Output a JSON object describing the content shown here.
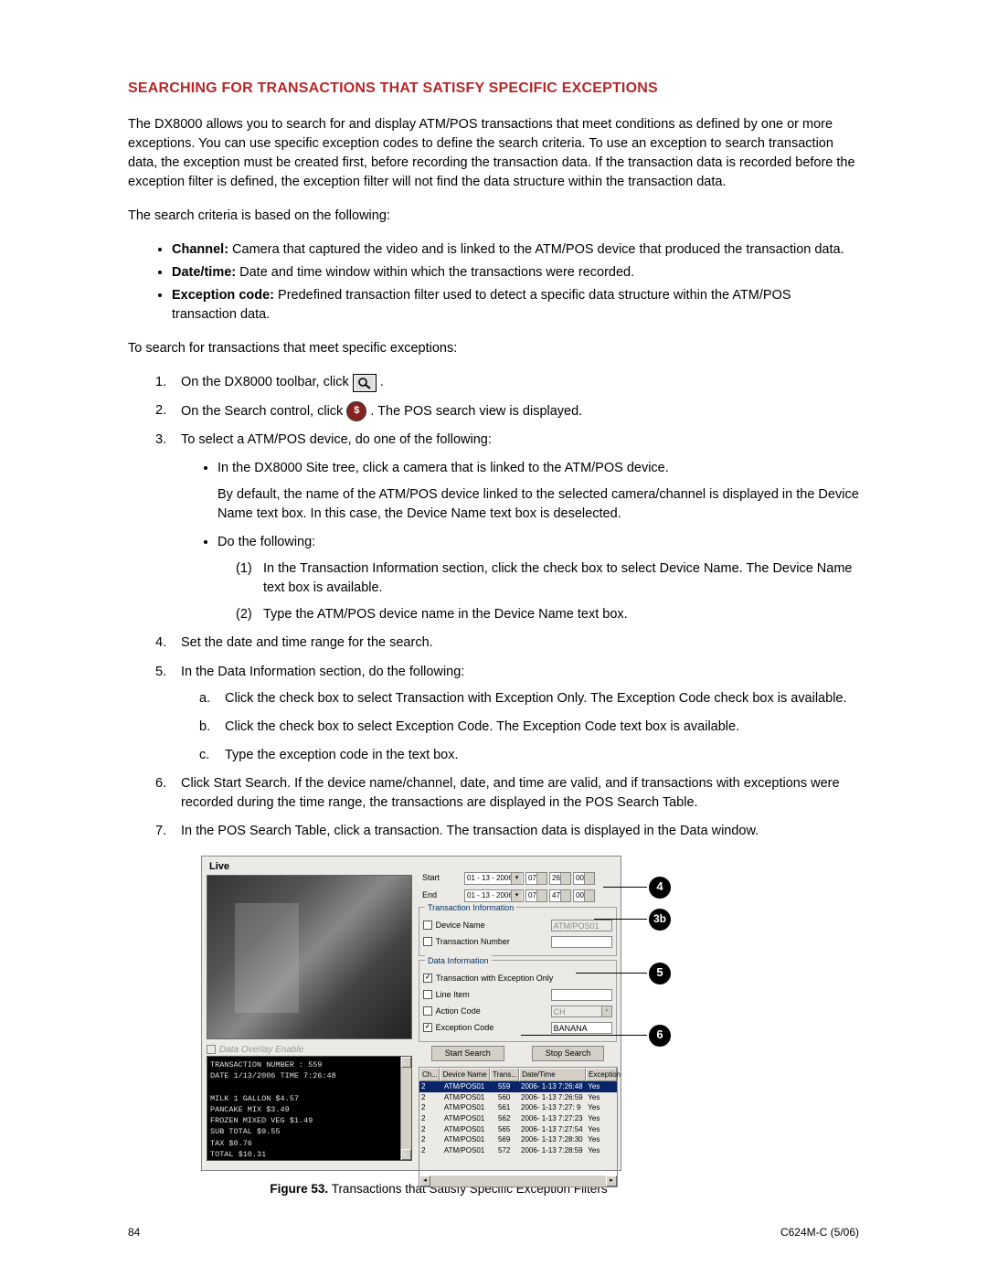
{
  "title": "SEARCHING FOR TRANSACTIONS THAT SATISFY SPECIFIC EXCEPTIONS",
  "intro": "The DX8000 allows you to search for and display ATM/POS transactions that meet conditions as defined by one or more exceptions. You can use specific exception codes to define the search criteria. To use an exception to search transaction data, the exception must be created first, before recording the transaction data. If the transaction data is recorded before the exception filter is defined, the exception filter will not find the data structure within the transaction data.",
  "criteria_intro": "The search criteria is based on the following:",
  "criteria": [
    {
      "b": "Channel:",
      "t": " Camera that captured the video and is linked to the ATM/POS device that produced the transaction data."
    },
    {
      "b": "Date/time:",
      "t": " Date and time window within which the transactions were recorded."
    },
    {
      "b": "Exception code:",
      "t": " Predefined transaction filter used to detect a specific data structure within the ATM/POS transaction data."
    }
  ],
  "steps_intro": "To search for transactions that meet specific exceptions:",
  "step1_a": "On the DX8000 toolbar, click ",
  "step1_b": " .",
  "step2_a": "On the Search control, click ",
  "step2_b": " . The POS search view is displayed.",
  "step3": "To select a ATM/POS device, do one of the following:",
  "step3_b1": "In the DX8000 Site tree, click a camera that is linked to the ATM/POS device.",
  "step3_b1_p": "By default, the name of the ATM/POS device linked to the selected camera/channel is displayed in the Device Name text box. In this case, the Device Name text box is deselected.",
  "step3_b2": "Do the following:",
  "step3_b2_1": "In the Transaction Information section, click the check box to select Device Name. The Device Name text box is available.",
  "step3_b2_2": "Type the ATM/POS device name in the Device Name text box.",
  "step4": "Set the date and time range for the search.",
  "step5": "In the Data Information section, do the following:",
  "step5_a": "Click the check box to select Transaction with Exception Only. The Exception Code check box is available.",
  "step5_b": "Click the check box to select Exception Code. The Exception Code text box is available.",
  "step5_c": "Type the exception code in the text box.",
  "step6": "Click Start Search. If the device name/channel, date, and time are valid, and if transactions with exceptions were recorded during the time range, the transactions are displayed in the POS Search Table.",
  "step7": "In the POS Search Table, click a transaction. The transaction data is displayed in the Data window.",
  "fig": {
    "live": "Live",
    "overlay": "Data Overlay Enable",
    "receipt": [
      "TRANSACTION NUMBER : 559",
      "DATE 1/13/2006   TIME 7:26:48",
      "",
      "MILK 1 GALLON        $4.57",
      "PANCAKE MIX          $3.49",
      "FROZEN MIXED VEG     $1.49",
      "SUB TOTAL            $9.55",
      "TAX                  $0.76",
      "TOTAL               $10.31"
    ],
    "start": "Start",
    "end": "End",
    "date": "01 - 13 - 2006",
    "h1": "07",
    "m1": "26",
    "s1": "00",
    "h2": "07",
    "m2": "47",
    "s2": "00",
    "ti": "Transaction Information",
    "di": "Data Information",
    "devname": "Device Name",
    "devval": "ATM/POS01",
    "transno": "Transaction Number",
    "texonly": "Transaction with Exception Only",
    "lineitem": "Line Item",
    "actioncode": "Action Code",
    "actionval": "CH",
    "excode": "Exception Code",
    "exval": "BANANA",
    "startbtn": "Start Search",
    "stopbtn": "Stop Search",
    "cols": [
      "Ch...",
      "Device Name",
      "Trans...",
      "Date/Time",
      "Exception"
    ],
    "rows": [
      [
        "2",
        "ATM/POS01",
        "559",
        "2006- 1-13  7:26:48",
        "Yes"
      ],
      [
        "2",
        "ATM/POS01",
        "560",
        "2006- 1-13  7:26:59",
        "Yes"
      ],
      [
        "2",
        "ATM/POS01",
        "561",
        "2006- 1-13  7:27: 9",
        "Yes"
      ],
      [
        "2",
        "ATM/POS01",
        "562",
        "2006- 1-13  7:27:23",
        "Yes"
      ],
      [
        "2",
        "ATM/POS01",
        "565",
        "2006- 1-13  7:27:54",
        "Yes"
      ],
      [
        "2",
        "ATM/POS01",
        "569",
        "2006- 1-13  7:28:30",
        "Yes"
      ],
      [
        "2",
        "ATM/POS01",
        "572",
        "2006- 1-13  7:28:59",
        "Yes"
      ]
    ]
  },
  "caption_b": "Figure 53.",
  "caption_t": "  Transactions that Satisfy Specific Exception Filters",
  "page": "84",
  "doc": "C624M-C (5/06)"
}
